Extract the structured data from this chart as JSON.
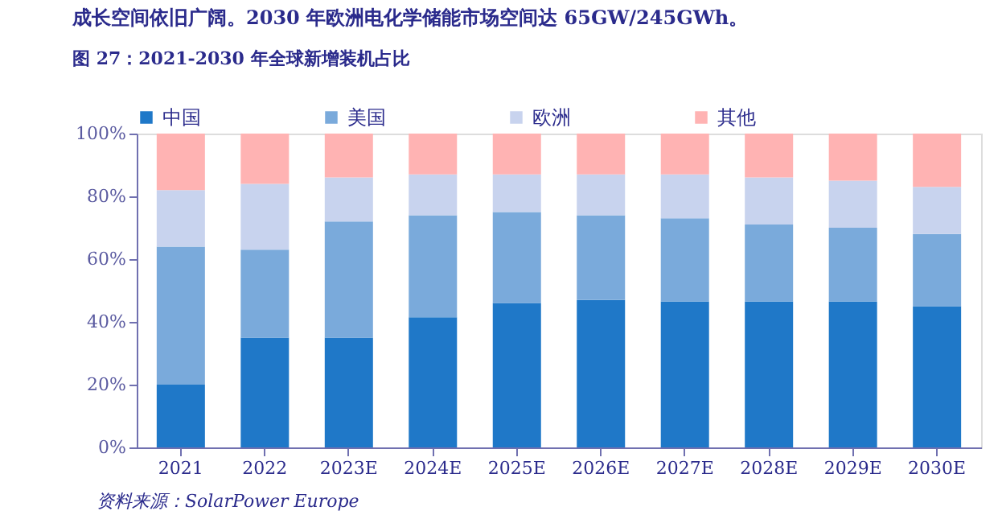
{
  "chart_data": {
    "type": "bar",
    "stacked": true,
    "title": "图 27：2021-2030 年全球新增装机占比",
    "categories": [
      "2021",
      "2022",
      "2023E",
      "2024E",
      "2025E",
      "2026E",
      "2027E",
      "2028E",
      "2029E",
      "2030E"
    ],
    "series": [
      {
        "name": "中国",
        "color": "#1f78c8",
        "values": [
          20,
          35,
          35,
          41.5,
          46,
          47,
          46.5,
          46.5,
          46.5,
          45
        ]
      },
      {
        "name": "美国",
        "color": "#7aaadb",
        "values": [
          44,
          28,
          37,
          32.5,
          29,
          27,
          26.5,
          24.5,
          23.5,
          23
        ]
      },
      {
        "name": "欧洲",
        "color": "#c8d3ee",
        "values": [
          18,
          21,
          14,
          13,
          12,
          13,
          14,
          15,
          15,
          15
        ]
      },
      {
        "name": "其他",
        "color": "#ffb3b3",
        "values": [
          18,
          16,
          14,
          13,
          13,
          13,
          13,
          14,
          15,
          17
        ]
      }
    ],
    "ylim": [
      0,
      100
    ],
    "yticks": [
      {
        "value": 0,
        "label": "0%"
      },
      {
        "value": 20,
        "label": "20%"
      },
      {
        "value": 40,
        "label": "40%"
      },
      {
        "value": 60,
        "label": "60%"
      },
      {
        "value": 80,
        "label": "80%"
      },
      {
        "value": 100,
        "label": "100%"
      }
    ],
    "grid": false,
    "legend": "top",
    "annotations": [
      "成长空间依旧广阔。2030 年欧洲电化学储能市场空间达 65GW/245GWh。",
      "资料来源：SolarPower Europe"
    ]
  }
}
